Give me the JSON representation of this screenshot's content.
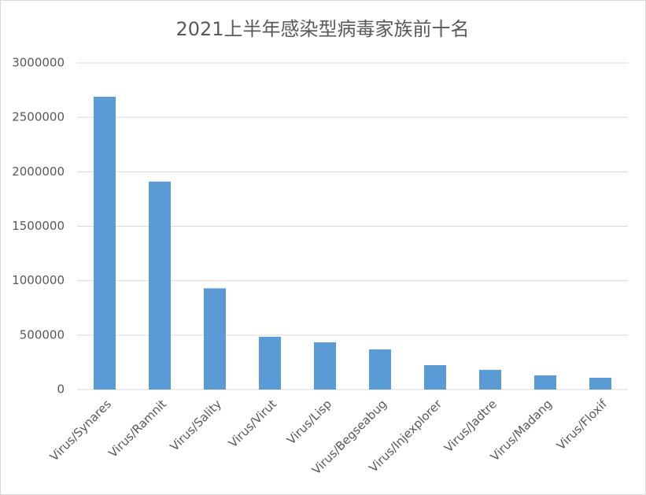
{
  "chart_data": {
    "type": "bar",
    "title": "2021上半年感染型病毒家族前十名",
    "categories": [
      "Virus/Synares",
      "Virus/Ramnit",
      "Virus/Sality",
      "Virus/Virut",
      "Virus/Lisp",
      "Virus/Begseabug",
      "Virus/Injexplorer",
      "Virus/Jadtre",
      "Virus/Madang",
      "Virus/Floxif"
    ],
    "values": [
      2690000,
      1910000,
      930000,
      485000,
      434000,
      369000,
      224000,
      181000,
      130000,
      108000
    ],
    "color": "#5b9bd5",
    "ylim": [
      0,
      3000000
    ],
    "yticks": [
      0,
      500000,
      1000000,
      1500000,
      2000000,
      2500000,
      3000000
    ],
    "grid": true
  }
}
